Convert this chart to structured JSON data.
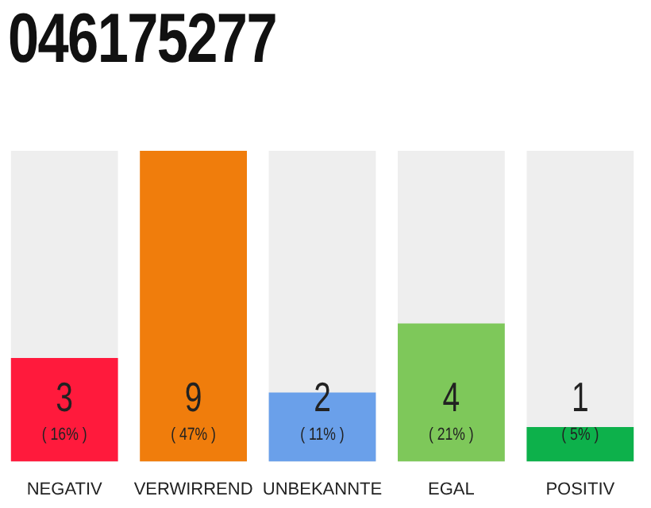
{
  "chart_data": {
    "type": "bar",
    "title": "046175277",
    "categories": [
      "NEGATIV",
      "VERWIRREND",
      "UNBEKANNTE",
      "EGAL",
      "POSITIV"
    ],
    "values": [
      3,
      9,
      2,
      4,
      1
    ],
    "colors": [
      "#ff1a3c",
      "#f07d0c",
      "#6aa0ea",
      "#7ec85a",
      "#0db14b"
    ],
    "ylim": [
      0,
      9
    ],
    "tick_labels": "x",
    "grid": false,
    "legend": false,
    "data_labels": true,
    "annotations": [
      {
        "text": "( 16% )",
        "x": "NEGATIV",
        "y": 0
      },
      {
        "text": "( 47% )",
        "x": "VERWIRREND",
        "y": 0
      },
      {
        "text": "( 11% )",
        "x": "UNBEKANNTE",
        "y": 0
      },
      {
        "text": "( 21% )",
        "x": "EGAL",
        "y": 0
      },
      {
        "text": "( 5% )",
        "x": "POSITIV",
        "y": 0
      }
    ]
  }
}
